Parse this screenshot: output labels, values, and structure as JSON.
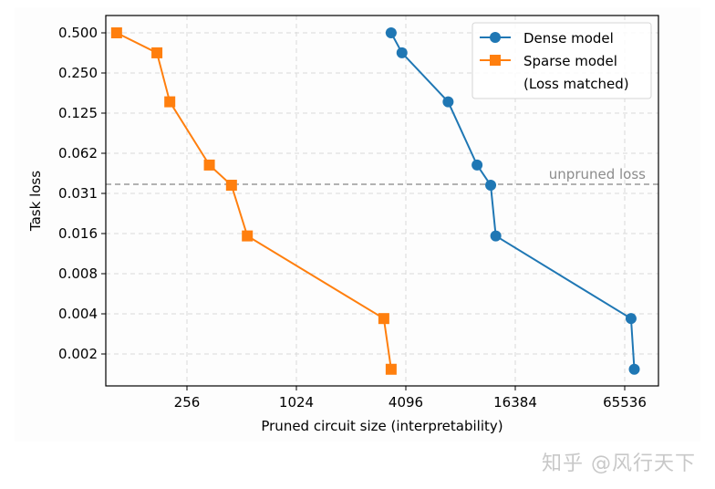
{
  "chart_data": {
    "type": "line",
    "title": "",
    "xlabel": "Pruned circuit size (interpretability)",
    "ylabel": "Task loss",
    "xscale": "log2",
    "yscale": "log2",
    "x_ticks": [
      256,
      1024,
      4096,
      16384,
      65536
    ],
    "x_tick_labels": [
      "256",
      "1024",
      "4096",
      "16384",
      "65536"
    ],
    "y_ticks": [
      0.5,
      0.25,
      0.125,
      0.0625,
      0.03125,
      0.015625,
      0.0078125,
      0.00390625,
      0.001953125
    ],
    "y_tick_labels": [
      "0.500",
      "0.250",
      "0.125",
      "0.062",
      "0.031",
      "0.016",
      "0.008",
      "0.004",
      "0.002"
    ],
    "xlim": [
      64,
      90000
    ],
    "ylim": [
      0.00105,
      0.68
    ],
    "grid": true,
    "legend_position": "upper right",
    "series": [
      {
        "name": "Dense model",
        "color": "#1f77b4",
        "marker": "circle",
        "x": [
          3400,
          3900,
          7000,
          10100,
          12000,
          12800,
          71000,
          74000
        ],
        "y": [
          0.5,
          0.354,
          0.152,
          0.051,
          0.036,
          0.015,
          0.0036,
          0.0015
        ]
      },
      {
        "name": "Sparse model\n(Loss matched)",
        "color": "#ff7f0e",
        "marker": "square",
        "x": [
          105,
          175,
          206,
          340,
          450,
          550,
          3100,
          3400
        ],
        "y": [
          0.5,
          0.354,
          0.152,
          0.051,
          0.036,
          0.015,
          0.0036,
          0.0015
        ]
      }
    ],
    "annotations": [
      {
        "type": "hline",
        "y": 0.037,
        "label": "unpruned loss",
        "color": "#999999",
        "style": "dashed"
      }
    ]
  },
  "legend": {
    "dense_label": "Dense model",
    "sparse_label_line1": "Sparse model",
    "sparse_label_line2": "(Loss matched)"
  },
  "annotation_label": "unpruned loss",
  "axes": {
    "xlabel": "Pruned circuit size (interpretability)",
    "ylabel": "Task loss"
  },
  "watermark": "知乎 @风行天下"
}
